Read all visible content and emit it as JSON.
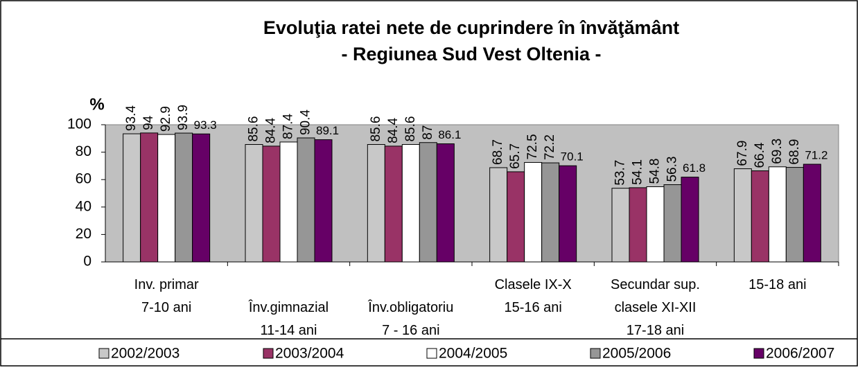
{
  "chart_data": {
    "type": "bar",
    "title": "Evoluţia ratei nete de cuprindere în învăţământ",
    "subtitle": "- Regiunea Sud Vest Oltenia -",
    "y_label": "%",
    "categories": [
      "Inv. primar\n7-10 ani",
      "Înv.gimnazial\n11-14 ani",
      "Înv.obligatoriu\n7 - 16 ani",
      "Clasele IX-X\n15-16 ani",
      "Secundar sup.\nclasele XI-XII\n17-18 ani",
      "15-18 ani"
    ],
    "series": [
      {
        "name": "2002/2003",
        "color": "#c8c8c8",
        "values": [
          93.4,
          85.6,
          85.6,
          68.7,
          53.7,
          67.9
        ]
      },
      {
        "name": "2003/2004",
        "color": "#993366",
        "values": [
          94,
          84.4,
          84.4,
          65.7,
          54.1,
          66.4
        ]
      },
      {
        "name": "2004/2005",
        "color": "#ffffff",
        "values": [
          92.9,
          87.4,
          85.6,
          72.5,
          54.8,
          69.3
        ]
      },
      {
        "name": "2005/2006",
        "color": "#969696",
        "values": [
          93.9,
          90.4,
          87,
          72.2,
          56.3,
          68.9
        ]
      },
      {
        "name": "2006/2007",
        "color": "#660066",
        "values": [
          93.3,
          89.1,
          86.1,
          70.1,
          61.8,
          71.2
        ]
      }
    ],
    "ylim": [
      0,
      100
    ],
    "yticks": [
      0,
      20,
      40,
      60,
      80,
      100
    ],
    "plot_background": "#c0c0c0",
    "legend": "bottom"
  }
}
